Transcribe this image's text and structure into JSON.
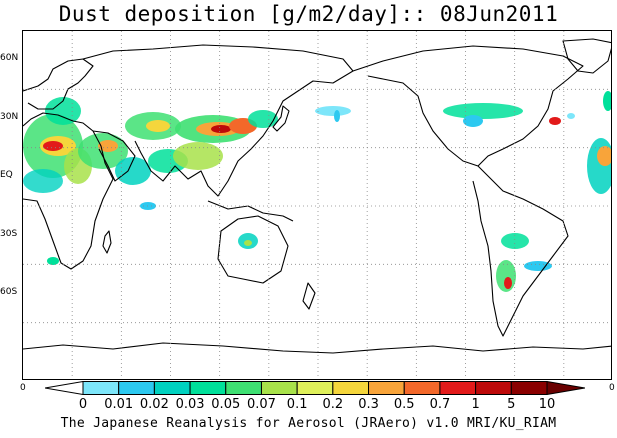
{
  "title": "Dust deposition [g/m2/day]:: 08Jun2011",
  "map": {
    "projection": "equirectangular, Pacific-centered",
    "lat_labels": [
      "60N",
      "30N",
      "EQ",
      "30S",
      "60S"
    ],
    "lat_values": [
      60,
      30,
      0,
      -30,
      -60
    ],
    "lat_range": [
      -90,
      90
    ],
    "lon_range": [
      0,
      360
    ],
    "corner_labels": {
      "left": "0",
      "right": "0"
    },
    "grid": "dotted"
  },
  "colorbar": {
    "labels": [
      "0",
      "0.01",
      "0.02",
      "0.03",
      "0.05",
      "0.07",
      "0.1",
      "0.2",
      "0.3",
      "0.5",
      "0.7",
      "1",
      "5",
      "10"
    ],
    "colors": [
      "#ffffff",
      "#7de6fa",
      "#2cc9f0",
      "#00d2c0",
      "#00e09a",
      "#3ee072",
      "#a8e24a",
      "#dff05a",
      "#f5d63c",
      "#f8a43a",
      "#f3682a",
      "#e21a1a",
      "#bd0a0a",
      "#8a0000",
      "#6a0000"
    ]
  },
  "credit": "The Japanese Reanalysis for Aerosol (JRAero) v1.0 MRI/KU_RIAM"
}
